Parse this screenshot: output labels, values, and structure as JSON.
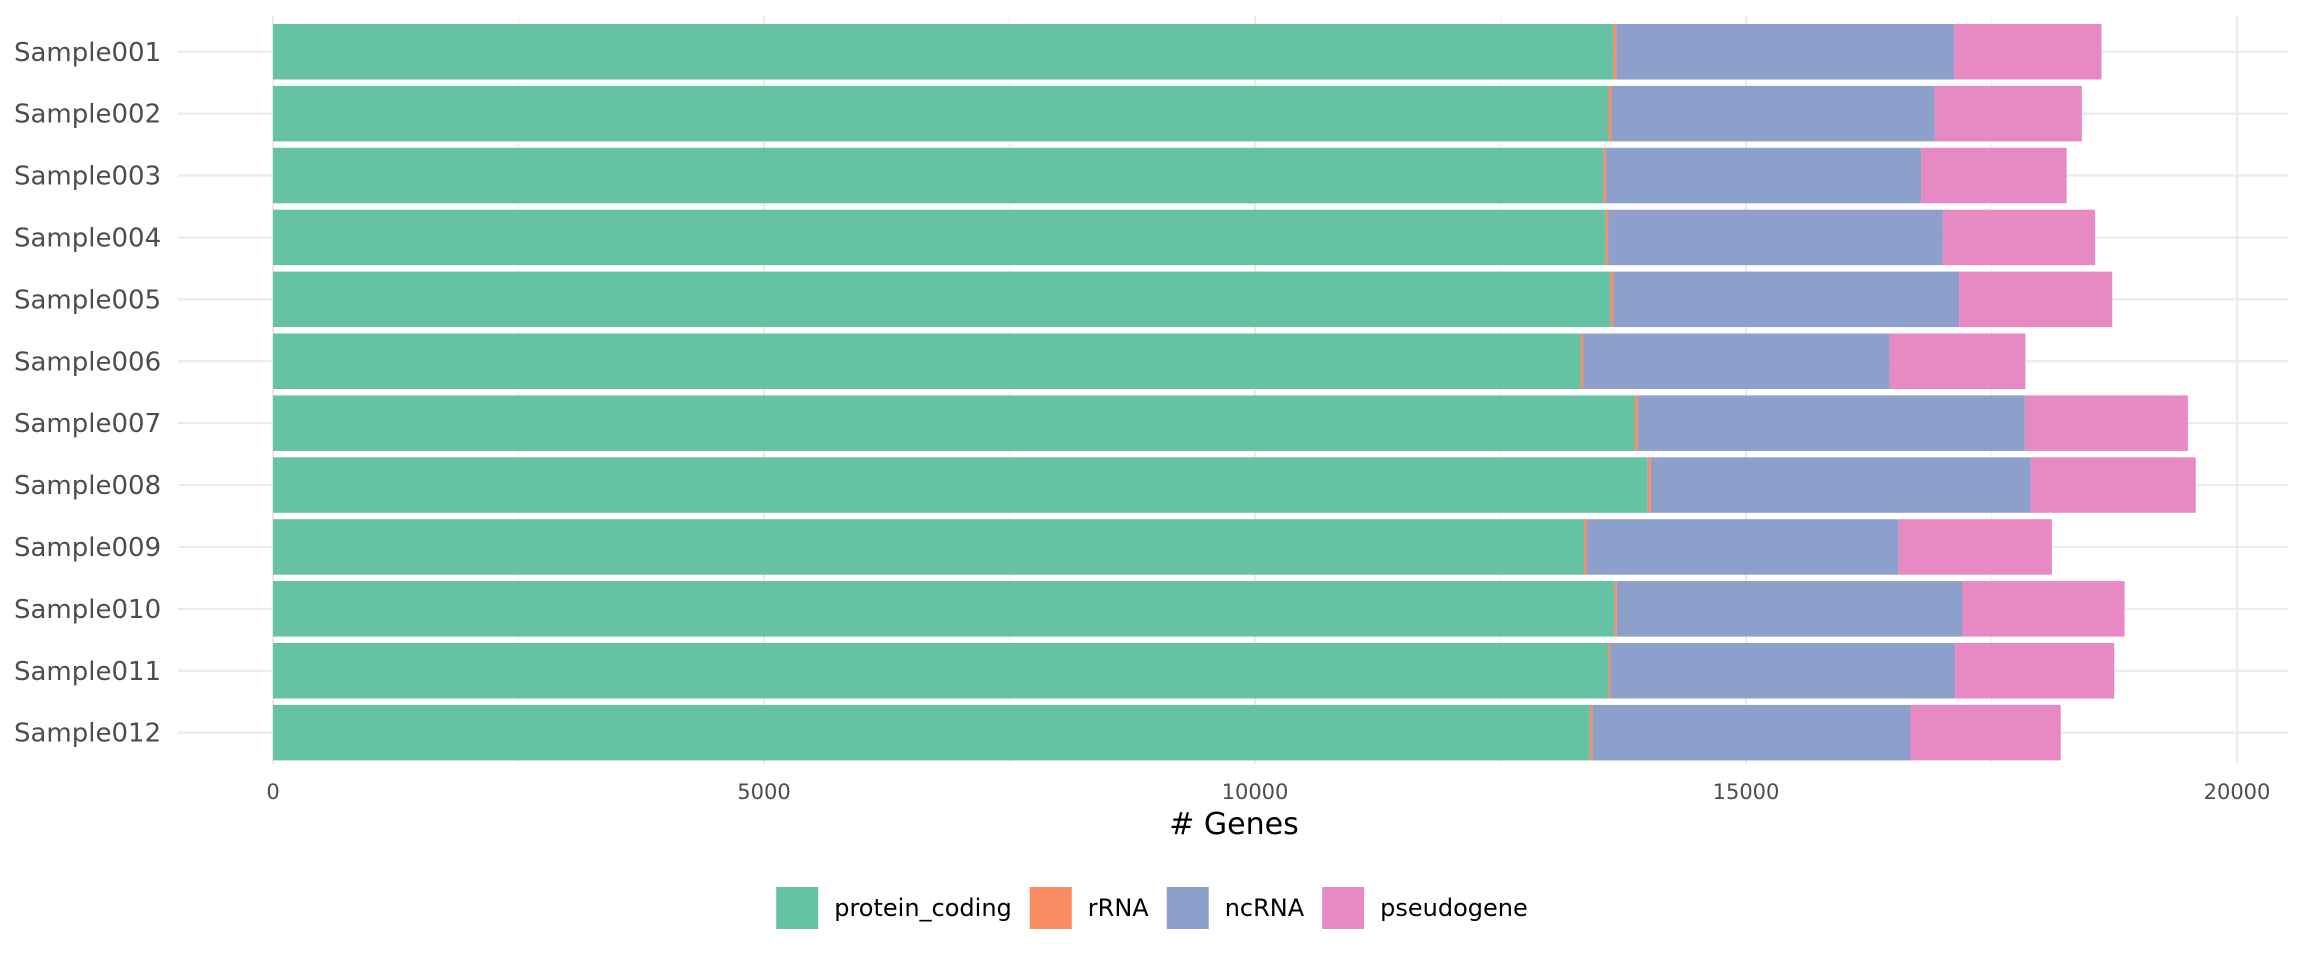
{
  "chart_data": {
    "type": "bar",
    "orientation": "horizontal",
    "stacked": true,
    "title": "",
    "xlabel": "# Genes",
    "ylabel": "",
    "xlim": [
      0,
      20000
    ],
    "x_ticks": [
      0,
      5000,
      10000,
      15000,
      20000
    ],
    "x_tick_labels": [
      "0",
      "5000",
      "10000",
      "15000",
      "20000"
    ],
    "grid": true,
    "legend_position": "bottom",
    "categories": [
      "Sample001",
      "Sample002",
      "Sample003",
      "Sample004",
      "Sample005",
      "Sample006",
      "Sample007",
      "Sample008",
      "Sample009",
      "Sample010",
      "Sample011",
      "Sample012"
    ],
    "series": [
      {
        "name": "protein_coding",
        "color": "#66C2A5",
        "values": [
          13650,
          13600,
          13550,
          13570,
          13620,
          13320,
          13870,
          14000,
          13350,
          13660,
          13600,
          13410
        ]
      },
      {
        "name": "rRNA",
        "color": "#FC8D62",
        "values": [
          30,
          30,
          25,
          25,
          30,
          25,
          30,
          30,
          25,
          25,
          20,
          25
        ]
      },
      {
        "name": "ncRNA",
        "color": "#8DA0CB",
        "values": [
          3440,
          3290,
          3210,
          3410,
          3520,
          3120,
          3940,
          3870,
          3180,
          3520,
          3510,
          3240
        ]
      },
      {
        "name": "pseudogene",
        "color": "#E78AC3",
        "values": [
          1500,
          1500,
          1480,
          1550,
          1560,
          1380,
          1660,
          1680,
          1560,
          1650,
          1620,
          1530
        ]
      }
    ]
  }
}
